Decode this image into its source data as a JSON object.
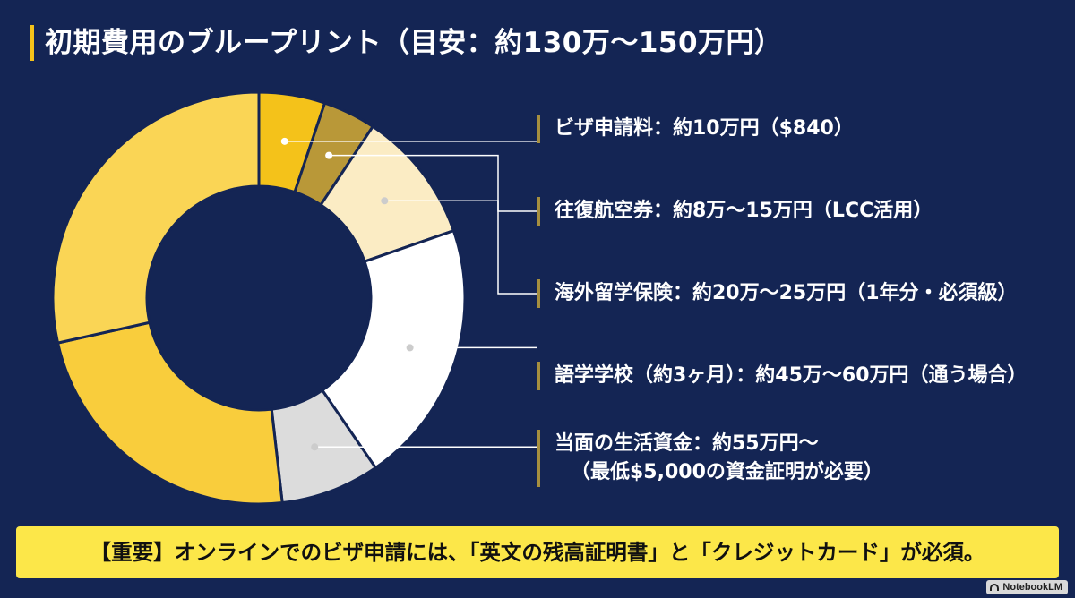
{
  "title": "初期費用のブループリント（目安：約130万〜150万円）",
  "legend": [
    {
      "lines": [
        "ビザ申請料：約10万円（$840）"
      ]
    },
    {
      "lines": [
        "往復航空券：約8万〜15万円（LCC活用）"
      ]
    },
    {
      "lines": [
        "海外留学保険：約20万〜25万円（1年分・必須級）"
      ]
    },
    {
      "lines": [
        "語学学校（約3ヶ月）：約45万〜60万円（通う場合）"
      ]
    },
    {
      "lines": [
        "当面の生活資金：約55万円〜",
        "（最低$5,000の資金証明が必要）"
      ]
    }
  ],
  "notice": "【重要】オンラインでのビザ申請には、「英文の残高証明書」と「クレジットカード」が必須。",
  "watermark": "NotebookLM",
  "chart_data": {
    "type": "pie",
    "donut": true,
    "values": [
      10,
      8,
      20,
      40,
      15,
      45,
      55
    ],
    "colors": [
      "#f4c21a",
      "#b99838",
      "#fbecc4",
      "#ffffff",
      "#dcdcdc",
      "#f9cd3c",
      "#fad555"
    ],
    "start_angle_deg": -90,
    "label_markers": [
      0,
      1,
      2,
      3,
      4
    ],
    "colors_theme": {
      "background": "#142554",
      "leader": "#ffffff",
      "divider": "#a68f3f",
      "notice_bg": "#fce749"
    }
  }
}
